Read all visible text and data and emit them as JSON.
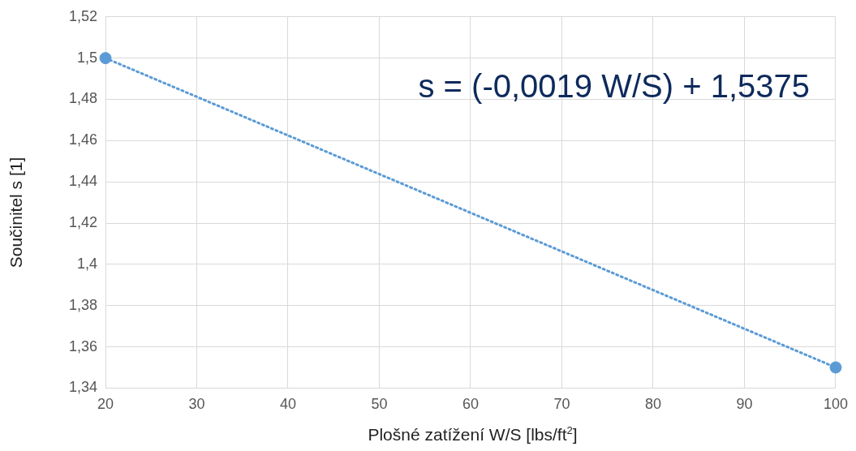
{
  "chart_data": {
    "type": "scatter",
    "xlabel": "Plošné zatížení W/S [lbs/ft$^{2}$]",
    "ylabel": "Součinitel s [1]",
    "annotations": [
      "s = (-0,0019 W/S) + 1,5375"
    ],
    "series": [
      {
        "type": "scatter",
        "color": "#5b9bd5",
        "values": [
          1.5,
          1.35
        ],
        "marker": "circle"
      },
      {
        "type": "line",
        "color": "#5b9bd5",
        "values": [
          1.5,
          1.35
        ],
        "marker": "none",
        "line_style": "dotted"
      }
    ],
    "x": [
      20,
      100
    ],
    "xlim": [
      20,
      100
    ],
    "xticks": [
      20,
      30,
      40,
      50,
      60,
      70,
      80,
      90,
      100
    ],
    "ylim": [
      1.34,
      1.52
    ],
    "yticks": [
      {
        "value": 1.34,
        "label": "1,34"
      },
      {
        "value": 1.36,
        "label": "1,36"
      },
      {
        "value": 1.38,
        "label": "1,38"
      },
      {
        "value": 1.4,
        "label": "1,4"
      },
      {
        "value": 1.42,
        "label": "1,42"
      },
      {
        "value": 1.44,
        "label": "1,44"
      },
      {
        "value": 1.46,
        "label": "1,46"
      },
      {
        "value": 1.48,
        "label": "1,48"
      },
      {
        "value": 1.5,
        "label": "1,5"
      },
      {
        "value": 1.52,
        "label": "1,52"
      }
    ],
    "grid": true,
    "legend": false
  }
}
